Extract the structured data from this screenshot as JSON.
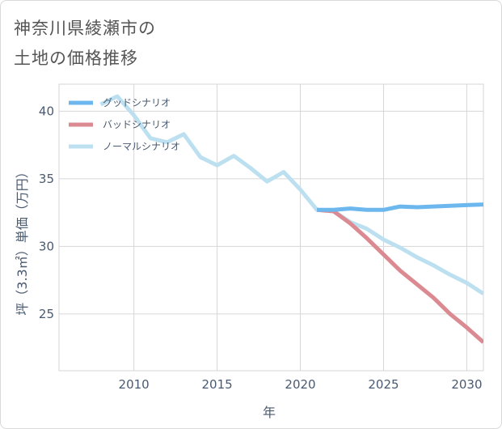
{
  "title_line1": "神奈川県綾瀬市の",
  "title_line2": "土地の価格推移",
  "chart_data": {
    "type": "line",
    "xlabel": "年",
    "ylabel": "坪（3.3㎡）単価（万円）",
    "xlim": [
      2005.5,
      2031
    ],
    "ylim": [
      20.8,
      42
    ],
    "x_ticks": [
      2010,
      2015,
      2020,
      2025,
      2030
    ],
    "y_ticks": [
      25,
      30,
      35,
      40
    ],
    "grid": true,
    "legend_position": "top-left",
    "series": [
      {
        "name": "グッドシナリオ",
        "color": "#6cb8ee",
        "x": [
          2021,
          2022,
          2023,
          2024,
          2025,
          2026,
          2027,
          2028,
          2029,
          2030,
          2031
        ],
        "y": [
          32.7,
          32.7,
          32.8,
          32.7,
          32.7,
          32.95,
          32.9,
          32.95,
          33.0,
          33.05,
          33.1
        ]
      },
      {
        "name": "バッドシナリオ",
        "color": "#dc8a92",
        "x": [
          2021,
          2022,
          2023,
          2024,
          2025,
          2026,
          2027,
          2028,
          2029,
          2030,
          2031
        ],
        "y": [
          32.7,
          32.6,
          31.7,
          30.6,
          29.4,
          28.2,
          27.2,
          26.2,
          25.0,
          24.0,
          22.9
        ]
      },
      {
        "name": "ノーマルシナリオ",
        "color": "#bde0f0",
        "x": [
          2008,
          2009,
          2010,
          2011,
          2012,
          2013,
          2014,
          2015,
          2016,
          2017,
          2018,
          2019,
          2020,
          2021,
          2022,
          2023,
          2024,
          2025,
          2026,
          2027,
          2028,
          2029,
          2030,
          2031
        ],
        "y": [
          40.5,
          41.1,
          39.7,
          38.0,
          37.7,
          38.3,
          36.6,
          36.0,
          36.7,
          35.8,
          34.8,
          35.5,
          34.2,
          32.7,
          32.6,
          31.8,
          31.3,
          30.5,
          29.9,
          29.2,
          28.6,
          27.9,
          27.3,
          26.5
        ]
      }
    ]
  }
}
